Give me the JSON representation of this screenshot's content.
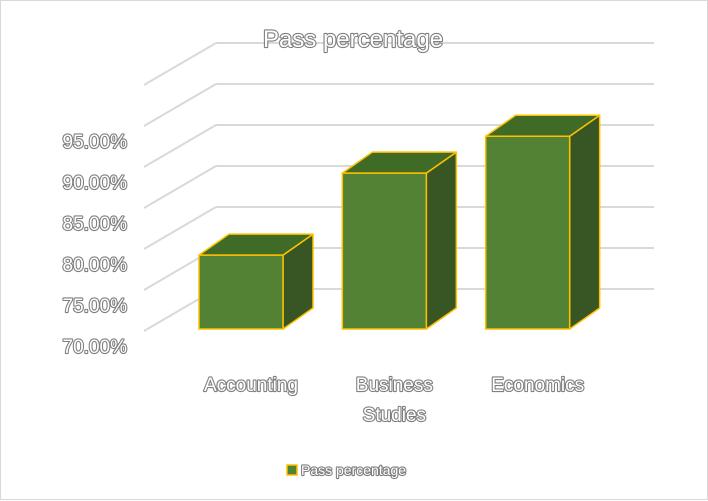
{
  "chart_data": {
    "type": "bar",
    "title": "Pass percentage",
    "categories": [
      [
        "Accounting"
      ],
      [
        "Business",
        "Studies"
      ],
      [
        "Economics"
      ]
    ],
    "series": [
      {
        "name": "Pass percentage",
        "values": [
          0.7925,
          0.8925,
          0.9375
        ]
      }
    ],
    "y_tick_labels": [
      "70.00%",
      "75.00%",
      "80.00%",
      "85.00%",
      "90.00%",
      "95.00%"
    ],
    "ylim": [
      0.7,
      0.95
    ],
    "grid": true,
    "legend": "bottom",
    "colors": {
      "bar_front": "#548235",
      "bar_top": "#3f6b27",
      "bar_side": "#375623",
      "bar_edge": "#ffc000",
      "grid": "#d9d9d9"
    }
  }
}
